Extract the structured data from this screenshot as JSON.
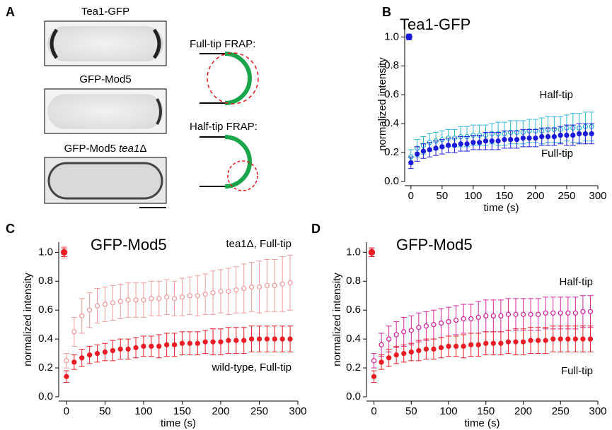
{
  "figure_a": {
    "panel": "A",
    "images": [
      [
        "Tea1-GFP"
      ],
      [
        "GFP-Mod5"
      ],
      [
        "GFP-Mod5 ",
        "tea1",
        "Δ"
      ]
    ],
    "diagrams": [
      "Full-tip FRAP:",
      "Half-tip FRAP:"
    ]
  },
  "chart_data": [
    {
      "type": "line",
      "panel": "B",
      "title": "Tea1-GFP",
      "title_color": "#1a1adb",
      "xlabel": "time (s)",
      "ylabel": "normalized intensity",
      "x": [
        -3,
        0,
        10,
        20,
        30,
        40,
        50,
        60,
        70,
        80,
        90,
        100,
        110,
        120,
        130,
        140,
        150,
        160,
        170,
        180,
        190,
        200,
        210,
        220,
        230,
        240,
        250,
        260,
        270,
        280,
        290
      ],
      "xlim": [
        -10,
        300
      ],
      "xticks": [
        0,
        50,
        100,
        150,
        200,
        250,
        300
      ],
      "ylim": [
        0,
        1.07
      ],
      "yticks": [
        {
          "value": 0,
          "label": "0.0"
        },
        0.2,
        0.4,
        0.6,
        0.8,
        {
          "value": 1,
          "label": "1.0"
        }
      ],
      "series": [
        {
          "name": "Half-tip",
          "color": "#2bb5d6",
          "marker": "open",
          "values": [
            1.0,
            0.17,
            0.23,
            0.25,
            0.27,
            0.28,
            0.29,
            0.3,
            0.3,
            0.31,
            0.31,
            0.32,
            0.32,
            0.32,
            0.33,
            0.33,
            0.33,
            0.34,
            0.34,
            0.34,
            0.35,
            0.35,
            0.35,
            0.36,
            0.36,
            0.36,
            0.37,
            0.37,
            0.37,
            0.38,
            0.38
          ],
          "errors": [
            0.02,
            0.05,
            0.06,
            0.06,
            0.06,
            0.06,
            0.06,
            0.06,
            0.06,
            0.07,
            0.07,
            0.07,
            0.07,
            0.07,
            0.07,
            0.08,
            0.08,
            0.08,
            0.08,
            0.08,
            0.08,
            0.08,
            0.09,
            0.09,
            0.09,
            0.09,
            0.09,
            0.1,
            0.1,
            0.1,
            0.1
          ]
        },
        {
          "name": "Full-tip",
          "color": "#1a1adb",
          "marker": "filled",
          "values": [
            1.0,
            0.13,
            0.19,
            0.21,
            0.22,
            0.23,
            0.24,
            0.25,
            0.25,
            0.26,
            0.26,
            0.27,
            0.27,
            0.28,
            0.28,
            0.28,
            0.29,
            0.29,
            0.29,
            0.3,
            0.3,
            0.3,
            0.31,
            0.31,
            0.31,
            0.32,
            0.32,
            0.32,
            0.33,
            0.33,
            0.33
          ],
          "errors": [
            0.02,
            0.04,
            0.05,
            0.05,
            0.05,
            0.05,
            0.05,
            0.05,
            0.05,
            0.05,
            0.05,
            0.05,
            0.05,
            0.06,
            0.06,
            0.06,
            0.06,
            0.06,
            0.06,
            0.06,
            0.06,
            0.06,
            0.06,
            0.06,
            0.06,
            0.06,
            0.07,
            0.07,
            0.07,
            0.07,
            0.07
          ]
        }
      ]
    },
    {
      "type": "line",
      "panel": "C",
      "title": "GFP-Mod5",
      "title_color": "#ec1c24",
      "xlabel": "time (s)",
      "ylabel": "normalized intensity",
      "x": [
        -3,
        0,
        10,
        20,
        30,
        40,
        50,
        60,
        70,
        80,
        90,
        100,
        110,
        120,
        130,
        140,
        150,
        160,
        170,
        180,
        190,
        200,
        210,
        220,
        230,
        240,
        250,
        260,
        270,
        280,
        290
      ],
      "xlim": [
        -10,
        300
      ],
      "xticks": [
        0,
        50,
        100,
        150,
        200,
        250,
        300
      ],
      "ylim": [
        0,
        1.07
      ],
      "yticks": [
        {
          "value": 0,
          "label": "0.0"
        },
        0.2,
        0.4,
        0.6,
        0.8,
        {
          "value": 1,
          "label": "1.0"
        }
      ],
      "series": [
        {
          "name": "tea1Δ, Full-tip",
          "color": "#f19c9c",
          "marker": "open",
          "values": [
            1.0,
            0.25,
            0.45,
            0.56,
            0.6,
            0.63,
            0.64,
            0.65,
            0.66,
            0.67,
            0.67,
            0.67,
            0.68,
            0.68,
            0.69,
            0.68,
            0.69,
            0.7,
            0.7,
            0.71,
            0.72,
            0.73,
            0.73,
            0.74,
            0.75,
            0.76,
            0.76,
            0.77,
            0.77,
            0.78,
            0.79
          ],
          "errors": [
            0.04,
            0.05,
            0.1,
            0.12,
            0.12,
            0.12,
            0.12,
            0.12,
            0.12,
            0.12,
            0.12,
            0.12,
            0.12,
            0.12,
            0.12,
            0.12,
            0.13,
            0.13,
            0.14,
            0.14,
            0.15,
            0.15,
            0.16,
            0.16,
            0.17,
            0.17,
            0.18,
            0.18,
            0.18,
            0.19,
            0.19
          ]
        },
        {
          "name": "wild-type, Full-tip",
          "color": "#ec1c24",
          "marker": "filled",
          "values": [
            1.0,
            0.14,
            0.24,
            0.27,
            0.29,
            0.3,
            0.31,
            0.32,
            0.33,
            0.33,
            0.34,
            0.35,
            0.35,
            0.35,
            0.36,
            0.36,
            0.37,
            0.37,
            0.37,
            0.38,
            0.38,
            0.38,
            0.39,
            0.39,
            0.39,
            0.4,
            0.4,
            0.4,
            0.4,
            0.4,
            0.4
          ],
          "errors": [
            0.03,
            0.04,
            0.05,
            0.06,
            0.06,
            0.06,
            0.06,
            0.07,
            0.07,
            0.07,
            0.07,
            0.07,
            0.07,
            0.08,
            0.08,
            0.08,
            0.08,
            0.08,
            0.08,
            0.08,
            0.09,
            0.09,
            0.09,
            0.09,
            0.09,
            0.09,
            0.09,
            0.09,
            0.09,
            0.09,
            0.09
          ]
        }
      ]
    },
    {
      "type": "line",
      "panel": "D",
      "title": "GFP-Mod5",
      "title_color": "#ec1c24",
      "xlabel": "time (s)",
      "ylabel": "normalized intensity",
      "x": [
        -3,
        0,
        10,
        20,
        30,
        40,
        50,
        60,
        70,
        80,
        90,
        100,
        110,
        120,
        130,
        140,
        150,
        160,
        170,
        180,
        190,
        200,
        210,
        220,
        230,
        240,
        250,
        260,
        270,
        280,
        290
      ],
      "xlim": [
        -10,
        300
      ],
      "xticks": [
        0,
        50,
        100,
        150,
        200,
        250,
        300
      ],
      "ylim": [
        0,
        1.07
      ],
      "yticks": [
        {
          "value": 0,
          "label": "0.0"
        },
        0.2,
        0.4,
        0.6,
        0.8,
        {
          "value": 1,
          "label": "1.0"
        }
      ],
      "series": [
        {
          "name": "Half-tip",
          "color": "#d6249b",
          "marker": "open",
          "values": [
            1.0,
            0.25,
            0.36,
            0.4,
            0.43,
            0.45,
            0.46,
            0.48,
            0.49,
            0.5,
            0.51,
            0.52,
            0.53,
            0.54,
            0.54,
            0.55,
            0.56,
            0.56,
            0.56,
            0.57,
            0.57,
            0.57,
            0.57,
            0.57,
            0.58,
            0.58,
            0.58,
            0.58,
            0.58,
            0.59,
            0.59
          ],
          "errors": [
            0.03,
            0.05,
            0.08,
            0.09,
            0.09,
            0.1,
            0.1,
            0.1,
            0.1,
            0.1,
            0.1,
            0.1,
            0.1,
            0.1,
            0.1,
            0.11,
            0.11,
            0.11,
            0.11,
            0.11,
            0.11,
            0.11,
            0.11,
            0.11,
            0.11,
            0.11,
            0.11,
            0.11,
            0.11,
            0.11,
            0.11
          ]
        },
        {
          "name": "Full-tip",
          "color": "#ec1c24",
          "marker": "filled",
          "values": [
            1.0,
            0.14,
            0.24,
            0.27,
            0.29,
            0.3,
            0.31,
            0.32,
            0.33,
            0.33,
            0.34,
            0.35,
            0.35,
            0.35,
            0.36,
            0.36,
            0.37,
            0.37,
            0.37,
            0.38,
            0.38,
            0.38,
            0.39,
            0.39,
            0.39,
            0.4,
            0.4,
            0.4,
            0.4,
            0.4,
            0.4
          ],
          "errors": [
            0.03,
            0.04,
            0.05,
            0.06,
            0.06,
            0.06,
            0.06,
            0.07,
            0.07,
            0.07,
            0.07,
            0.07,
            0.07,
            0.08,
            0.08,
            0.08,
            0.08,
            0.08,
            0.08,
            0.08,
            0.09,
            0.09,
            0.09,
            0.09,
            0.09,
            0.09,
            0.09,
            0.09,
            0.09,
            0.09,
            0.09
          ]
        }
      ]
    }
  ]
}
